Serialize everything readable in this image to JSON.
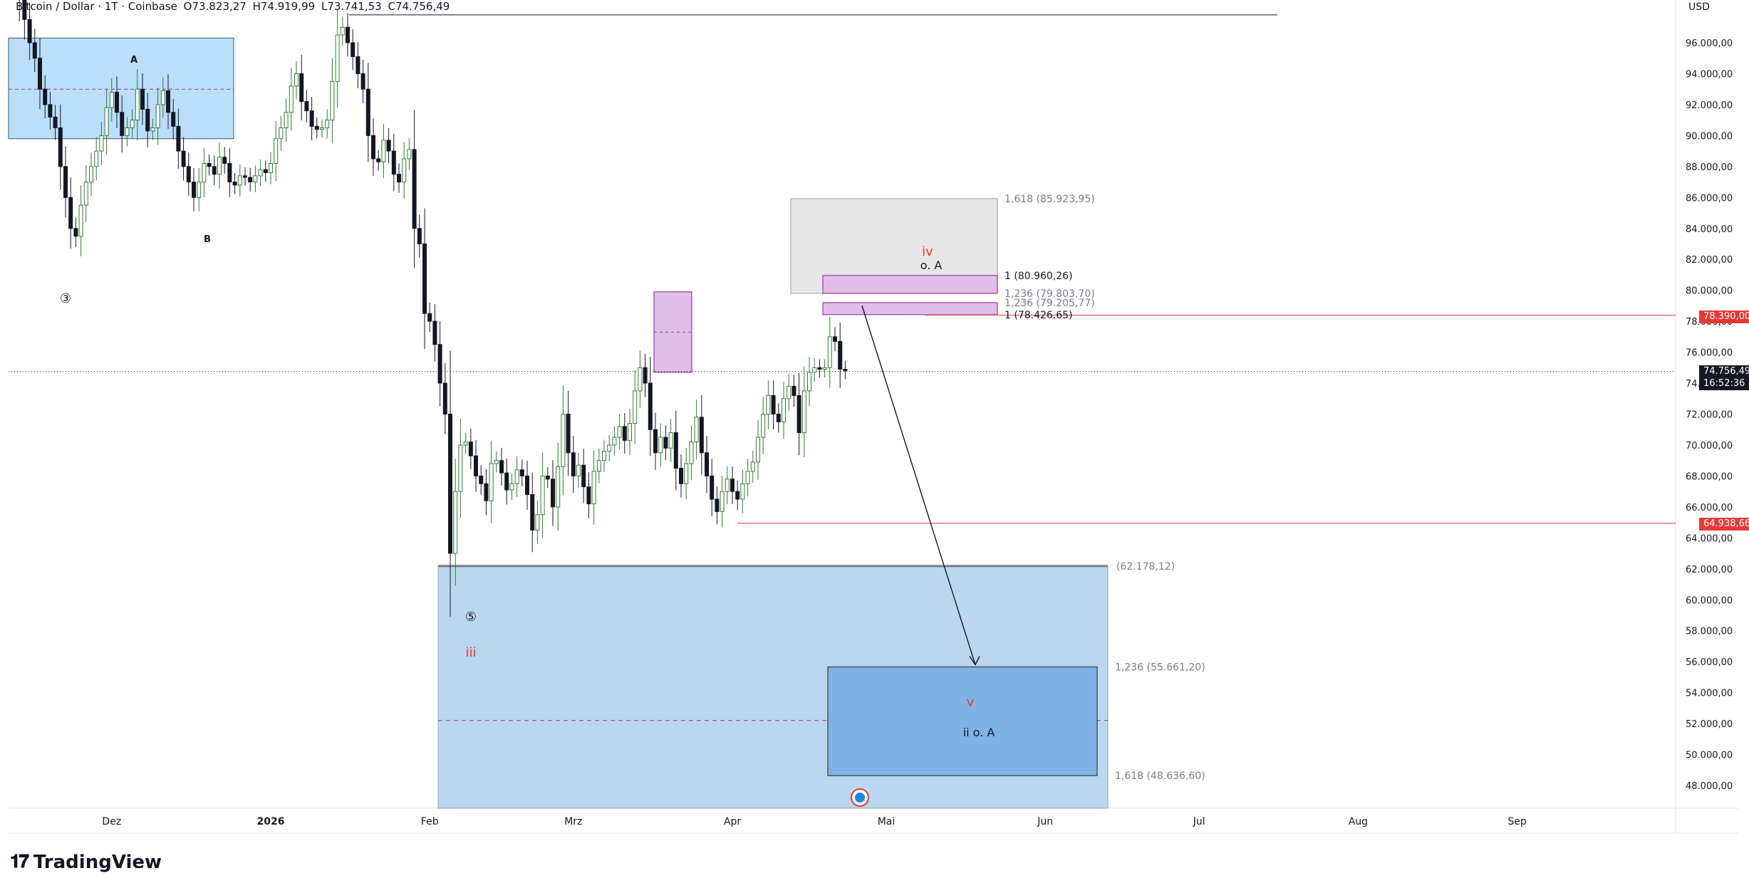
{
  "header": {
    "symbol": "Bitcoin / Dollar · 1T · Coinbase",
    "open_label": "O",
    "open": "73.823,27",
    "high_label": "H",
    "high": "74.919,99",
    "low_label": "L",
    "low": "73.741,53",
    "close_label": "C",
    "close": "74.756,49",
    "currency": "USD"
  },
  "brand": {
    "name": "TradingView",
    "logo": "tradingview-logo-icon"
  },
  "colors": {
    "up": "#2e7d32",
    "down": "#131722",
    "blue_zone": "#bbdefb",
    "blue_zone_dark": "#64b5f6",
    "pink_zone": "#e1bee7",
    "grey_zone": "#e0e0e0",
    "red_label": "#e53935",
    "red_line": "#e57373"
  },
  "price_tags": {
    "resistance": "78.390,00",
    "last_price": "74.756,49",
    "countdown": "16:52:36",
    "support": "64.938,66"
  },
  "chart_data": {
    "type": "candlestick",
    "ylim": [
      47000,
      99500
    ],
    "y_ticks": [
      "96.000,00",
      "94.000,00",
      "92.000,00",
      "90.000,00",
      "88.000,00",
      "86.000,00",
      "84.000,00",
      "82.000,00",
      "80.000,00",
      "78.000,00",
      "76.000,00",
      "74.000,00",
      "72.000,00",
      "70.000,00",
      "68.000,00",
      "66.000,00",
      "64.000,00",
      "62.000,00",
      "60.000,00",
      "58.000,00",
      "56.000,00",
      "54.000,00",
      "52.000,00",
      "50.000,00",
      "48.000,00"
    ],
    "y_tick_values": [
      96000,
      94000,
      92000,
      90000,
      88000,
      86000,
      84000,
      82000,
      80000,
      78000,
      76000,
      74000,
      72000,
      70000,
      68000,
      66000,
      64000,
      62000,
      60000,
      58000,
      56000,
      54000,
      52000,
      50000,
      48000
    ],
    "x_ticks": [
      "Dez",
      "2026",
      "Feb",
      "Mrz",
      "Apr",
      "Mai",
      "Jun",
      "Jul",
      "Aug",
      "Sep"
    ],
    "x_tick_dates": [
      "2025-12-01",
      "2026-01-01",
      "2026-02-01",
      "2026-03-01",
      "2026-04-01",
      "2026-05-01",
      "2026-06-01",
      "2026-07-01",
      "2026-08-01",
      "2026-09-01"
    ],
    "candles": {
      "start_date": "2025-11-12",
      "close": [
        103500,
        99500,
        97500,
        96000,
        95000,
        93000,
        92000,
        91200,
        90500,
        88000,
        86000,
        84000,
        83500,
        85500,
        87000,
        88000,
        89000,
        90000,
        91800,
        92800,
        91500,
        90000,
        90500,
        91000,
        93000,
        91700,
        90300,
        90500,
        92000,
        92900,
        91500,
        90600,
        89000,
        88000,
        87000,
        86000,
        87000,
        88200,
        88000,
        87500,
        88600,
        88200,
        87000,
        86800,
        87400,
        87300,
        87000,
        87400,
        87800,
        87600,
        88200,
        89800,
        90500,
        91500,
        93200,
        94000,
        92200,
        91600,
        90600,
        90400,
        90500,
        91000,
        93500,
        96500,
        97000,
        96000,
        95100,
        94000,
        93000,
        90000,
        88500,
        88300,
        89700,
        89000,
        87500,
        87000,
        88500,
        89100,
        84000,
        83000,
        78500,
        78000,
        76500,
        74000,
        72000,
        63000,
        67000,
        70000,
        70200,
        69300,
        68000,
        67500,
        66400,
        68800,
        69000,
        68200,
        67100,
        67500,
        68400,
        68000,
        66800,
        64500,
        65500,
        68000,
        67800,
        66000,
        68600,
        72000,
        69500,
        68000,
        68700,
        67300,
        66200,
        68300,
        69000,
        69600,
        70000,
        70500,
        71200,
        70300,
        71400,
        73500,
        75000,
        74000,
        71000,
        69500,
        70500,
        69800,
        70800,
        68500,
        67500,
        68800,
        70200,
        71800,
        69500,
        68000,
        66500,
        65700,
        67000,
        67800,
        67000,
        66500,
        67500,
        68300,
        68900,
        70500,
        72000,
        73200,
        72000,
        71500,
        73000,
        73800,
        73200,
        70800,
        73500,
        74700,
        75000,
        74900,
        75000,
        77000,
        76700,
        74900,
        74800
      ],
      "highs_lows_note": "derived per candle"
    },
    "zones": [
      {
        "name": "Upper grey zone",
        "from": 79800,
        "to": 85924
      },
      {
        "name": "Pink zone mid",
        "from": 74700,
        "to": 79800
      },
      {
        "name": "Large blue zone",
        "from": 47000,
        "to": 62178
      },
      {
        "name": "Dark blue target zone",
        "from": 48637,
        "to": 55661
      },
      {
        "name": "Old blue range",
        "from": 89800,
        "to": 96300
      }
    ],
    "fib_labels": [
      "1,618 (85.923,95)",
      "1 (80.960,26)",
      "1,236 (79.803,70)",
      "1,236 (79.205,77)",
      "1 (78.426,65)",
      "(62.178,12)",
      "1,236 (55.661,20)",
      "1,618 (48.636,60)"
    ],
    "fib_values": [
      85923.95,
      80960.26,
      79803.7,
      79205.77,
      78426.65,
      62178.12,
      55661.2,
      48636.6
    ],
    "wave_labels": {
      "w3": "③",
      "w5": "⑤",
      "A": "A",
      "B": "B",
      "iii": "iii",
      "iv": "iv",
      "oA": "o. A",
      "v": "v",
      "iioA": "ii o. A"
    },
    "lines": {
      "resistance": 78390,
      "support": 64938.66,
      "last": 74756.49,
      "ath_line": 97800
    }
  }
}
